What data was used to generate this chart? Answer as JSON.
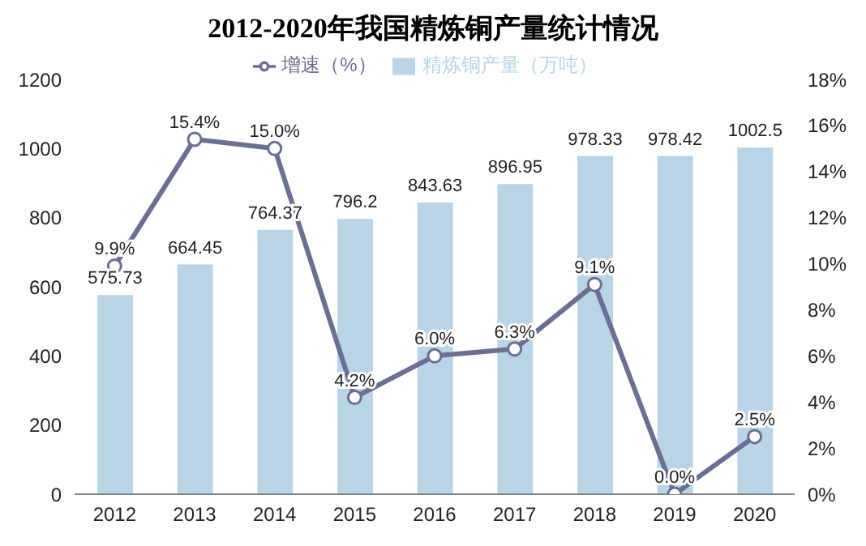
{
  "chart_data": {
    "type": "bar",
    "title": "2012-2020年我国精炼铜产量统计情况",
    "categories": [
      "2012",
      "2013",
      "2014",
      "2015",
      "2016",
      "2017",
      "2018",
      "2019",
      "2020"
    ],
    "series": [
      {
        "name": "精炼铜产量（万吨）",
        "color": "#b8d4e6",
        "values": [
          575.73,
          664.45,
          764.37,
          796.2,
          843.63,
          896.95,
          978.33,
          978.42,
          1002.5
        ],
        "value_labels": [
          "575.73",
          "664.45",
          "764.37",
          "796.2",
          "843.63",
          "896.95",
          "978.33",
          "978.42",
          "1002.5"
        ]
      },
      {
        "name": "增速（%）",
        "type": "line",
        "axis": "y2",
        "color": "#6b6f94",
        "marker": "circle",
        "values": [
          9.9,
          15.4,
          15.0,
          4.2,
          6.0,
          6.3,
          9.1,
          0.0,
          2.5
        ],
        "value_labels": [
          "9.9%",
          "15.4%",
          "15.0%",
          "4.2%",
          "6.0%",
          "6.3%",
          "9.1%",
          "0.0%",
          "2.5%"
        ]
      }
    ],
    "ylim": [
      0,
      1200
    ],
    "yticks": [
      0,
      200,
      400,
      600,
      800,
      1000,
      1200
    ],
    "y2lim": [
      0,
      18
    ],
    "y2ticks": [
      {
        "value": 0,
        "label": "0%"
      },
      {
        "value": 2,
        "label": "2%"
      },
      {
        "value": 4,
        "label": "4%"
      },
      {
        "value": 6,
        "label": "6%"
      },
      {
        "value": 8,
        "label": "8%"
      },
      {
        "value": 10,
        "label": "10%"
      },
      {
        "value": 12,
        "label": "12%"
      },
      {
        "value": 14,
        "label": "14%"
      },
      {
        "value": 16,
        "label": "16%"
      },
      {
        "value": 18,
        "label": "18%"
      }
    ],
    "legend": "top",
    "grid": false
  }
}
